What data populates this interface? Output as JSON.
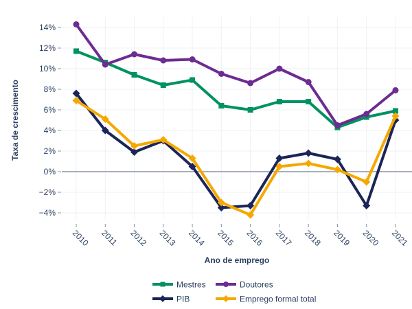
{
  "chart_data": {
    "type": "line",
    "title": "",
    "xlabel": "Ano de emprego",
    "ylabel": "Taxa de crescimento",
    "x": [
      2010,
      2011,
      2012,
      2013,
      2014,
      2015,
      2016,
      2017,
      2018,
      2019,
      2020,
      2021
    ],
    "x_tick_labels": [
      "2010",
      "2011",
      "2012",
      "2013",
      "2014",
      "2015",
      "2016",
      "2017",
      "2018",
      "2019",
      "2020",
      "2021"
    ],
    "y_ticks": [
      -4,
      -2,
      0,
      2,
      4,
      6,
      8,
      10,
      12,
      14
    ],
    "y_tick_labels": [
      "−4%",
      "−2%",
      "0%",
      "2%",
      "4%",
      "6%",
      "8%",
      "10%",
      "12%",
      "14%"
    ],
    "ylim": [
      -5.3,
      15.0
    ],
    "xlim": [
      2009.5,
      2021.55
    ],
    "grid": true,
    "zero_line": true,
    "legend_position": "bottom-center",
    "series": [
      {
        "name": "Mestres",
        "color": "#00925f",
        "marker": "square",
        "values": [
          11.7,
          10.6,
          9.4,
          8.4,
          8.9,
          6.4,
          6.0,
          6.8,
          6.8,
          4.3,
          5.3,
          5.9
        ]
      },
      {
        "name": "Doutores",
        "color": "#6c2c91",
        "marker": "circle",
        "values": [
          14.3,
          10.4,
          11.4,
          10.8,
          10.9,
          9.5,
          8.6,
          10.0,
          8.7,
          4.5,
          5.6,
          7.9
        ]
      },
      {
        "name": "PIB",
        "color": "#1b2557",
        "marker": "diamond",
        "values": [
          7.6,
          4.0,
          1.9,
          3.0,
          0.5,
          -3.5,
          -3.3,
          1.3,
          1.8,
          1.2,
          -3.3,
          5.0
        ]
      },
      {
        "name": "Emprego formal total",
        "color": "#f5a800",
        "marker": "diamond",
        "values": [
          6.9,
          5.1,
          2.5,
          3.1,
          1.3,
          -3.0,
          -4.2,
          0.5,
          0.8,
          0.2,
          -1.0,
          5.4
        ]
      }
    ]
  }
}
